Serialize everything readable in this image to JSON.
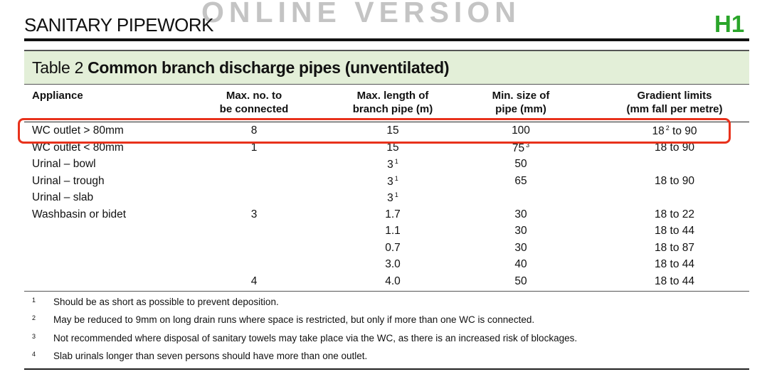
{
  "header": {
    "title": "SANITARY PIPEWORK",
    "watermark": "ONLINE VERSION",
    "section_code": "H1"
  },
  "colors": {
    "section_code": "#2aa52a",
    "band": "#e3efd8",
    "highlight": "#e8321c"
  },
  "table": {
    "number": "Table 2",
    "title": "Common branch discharge pipes (unventilated)",
    "columns": [
      [
        "Appliance",
        ""
      ],
      [
        "Max. no. to",
        "be connected"
      ],
      [
        "Max. length of",
        "branch pipe (m)"
      ],
      [
        "Min. size of",
        "pipe (mm)"
      ],
      [
        "Gradient limits",
        "(mm fall per metre)"
      ]
    ],
    "rows": [
      [
        {
          "t": "WC outlet > 80mm"
        },
        {
          "t": "8"
        },
        {
          "t": "15"
        },
        {
          "t": "100"
        },
        {
          "t": "18",
          "s": "2",
          "a": " to 90"
        }
      ],
      [
        {
          "t": "WC outlet < 80mm"
        },
        {
          "t": "1"
        },
        {
          "t": "15"
        },
        {
          "t": "75",
          "s": "3"
        },
        {
          "t": "18 to 90"
        }
      ],
      [
        {
          "t": "Urinal – bowl"
        },
        {
          "t": ""
        },
        {
          "t": "3",
          "s": "1"
        },
        {
          "t": "50"
        },
        {
          "t": ""
        }
      ],
      [
        {
          "t": "Urinal – trough"
        },
        {
          "t": ""
        },
        {
          "t": "3",
          "s": "1"
        },
        {
          "t": "65"
        },
        {
          "t": "18 to 90"
        }
      ],
      [
        {
          "t": "Urinal – slab"
        },
        {
          "t": ""
        },
        {
          "t": "3",
          "s": "1"
        },
        {
          "t": ""
        },
        {
          "t": ""
        }
      ],
      [
        {
          "t": "Washbasin or bidet"
        },
        {
          "t": "3"
        },
        {
          "t": "1.7"
        },
        {
          "t": "30"
        },
        {
          "t": "18 to 22"
        }
      ],
      [
        {
          "t": ""
        },
        {
          "t": ""
        },
        {
          "t": "1.1"
        },
        {
          "t": "30"
        },
        {
          "t": "18 to 44"
        }
      ],
      [
        {
          "t": ""
        },
        {
          "t": ""
        },
        {
          "t": "0.7"
        },
        {
          "t": "30"
        },
        {
          "t": "18 to 87"
        }
      ],
      [
        {
          "t": ""
        },
        {
          "t": ""
        },
        {
          "t": "3.0"
        },
        {
          "t": "40"
        },
        {
          "t": "18 to 44"
        }
      ],
      [
        {
          "t": ""
        },
        {
          "t": "4"
        },
        {
          "t": "4.0"
        },
        {
          "t": "50"
        },
        {
          "t": "18 to 44"
        }
      ]
    ],
    "highlighted_row": 0
  },
  "footnotes": [
    {
      "num": "1",
      "text": "Should be as short as possible to prevent deposition."
    },
    {
      "num": "2",
      "text": "May be reduced to 9mm on long drain runs where space is restricted, but only if more than one WC is connected."
    },
    {
      "num": "3",
      "text": "Not recommended where disposal of sanitary towels may take place via the WC, as there is an increased risk of blockages."
    },
    {
      "num": "4",
      "text": "Slab urinals longer than seven persons should have more than one outlet."
    }
  ]
}
